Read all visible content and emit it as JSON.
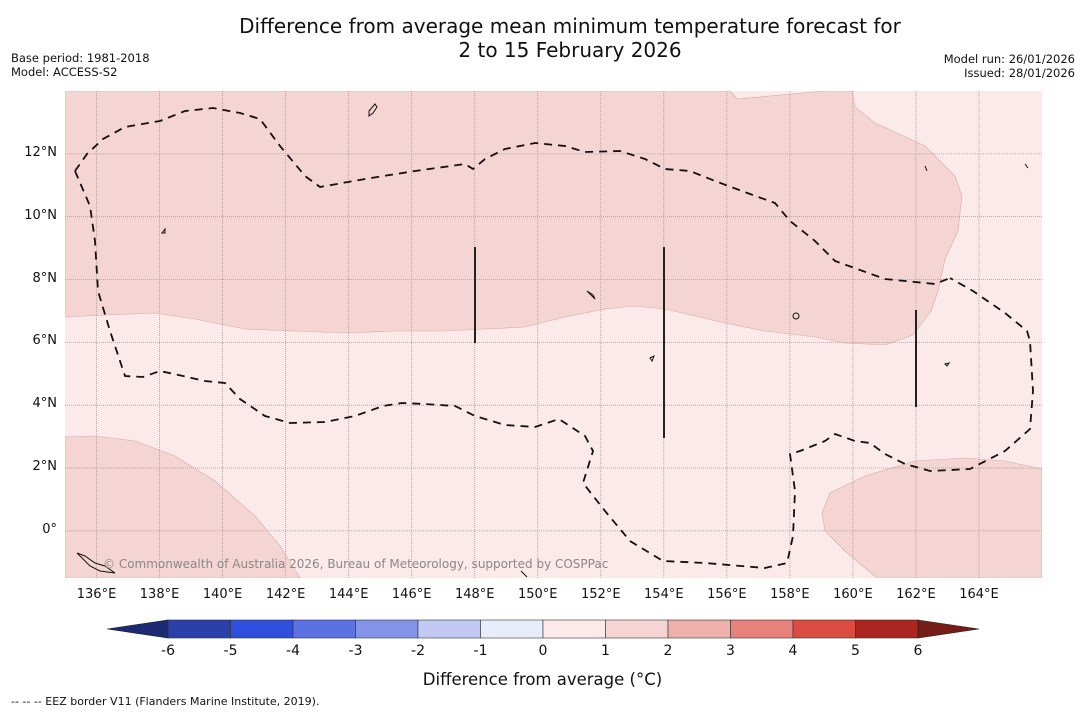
{
  "header": {
    "title_line1": "Difference from average mean minimum temperature forecast for",
    "title_line2": "2 to 15 February 2026",
    "base_period": "Base period: 1981-2018",
    "model": "Model: ACCESS-S2",
    "model_run": "Model run: 26/01/2026",
    "issued": "Issued: 28/01/2026"
  },
  "map": {
    "lon_range": [
      135,
      166
    ],
    "lat_range": [
      -1.5,
      14
    ],
    "lat_ticks": [
      "12°N",
      "10°N",
      "8°N",
      "6°N",
      "4°N",
      "2°N",
      "0°"
    ],
    "lat_values": [
      12,
      10,
      8,
      6,
      4,
      2,
      0
    ],
    "lon_ticks": [
      "136°E",
      "138°E",
      "140°E",
      "142°E",
      "144°E",
      "146°E",
      "148°E",
      "150°E",
      "152°E",
      "154°E",
      "156°E",
      "158°E",
      "160°E",
      "162°E",
      "164°E"
    ],
    "lon_values": [
      136,
      138,
      140,
      142,
      144,
      146,
      148,
      150,
      152,
      154,
      156,
      158,
      160,
      162,
      164
    ],
    "credit": "© Commonwealth of Australia 2026, Bureau of Meteorology, supported by COSPPac",
    "dominant_category": "0 to 1 °C and 1 to 2 °C above average",
    "colors": {
      "cat_0_1": "#fbeae9",
      "cat_1_2": "#f5d5d3"
    }
  },
  "colorbar": {
    "label": "Difference from average (°C)",
    "ticks": [
      "-6",
      "-5",
      "-4",
      "-3",
      "-2",
      "-1",
      "0",
      "1",
      "2",
      "3",
      "4",
      "5",
      "6"
    ],
    "colors": [
      "#1b2a72",
      "#2a3fa8",
      "#2f4fe0",
      "#5b72e0",
      "#8394e8",
      "#c2c9f2",
      "#e9ecfa",
      "#fbeae9",
      "#f5d5d3",
      "#eeb0ab",
      "#e6827b",
      "#dc4b42",
      "#a9271f",
      "#761c16"
    ]
  },
  "footnote": "--  --  -- EEZ border V11 (Flanders Marine Institute, 2019)."
}
